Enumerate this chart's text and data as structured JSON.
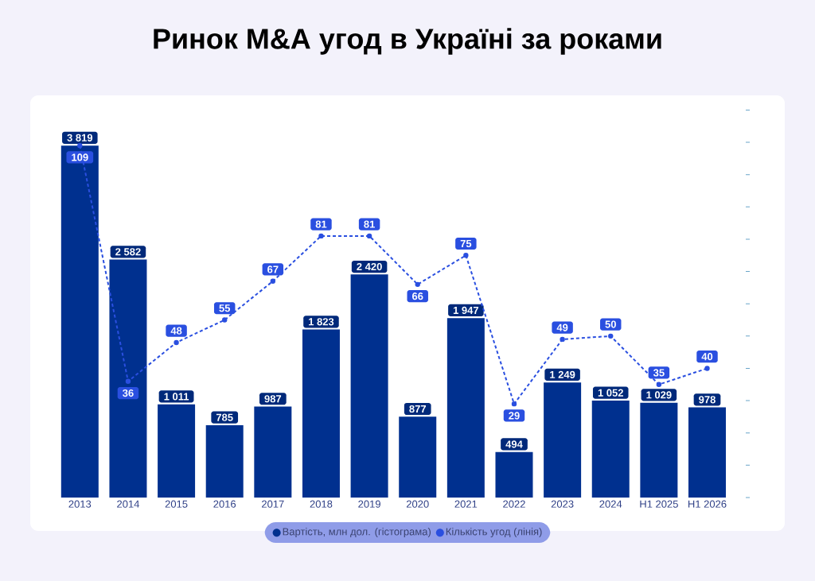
{
  "chart_data": {
    "type": "bar",
    "title": "Ринок M&A угод в Україні за роками",
    "categories": [
      "2013",
      "2014",
      "2015",
      "2016",
      "2017",
      "2018",
      "2019",
      "2020",
      "2021",
      "2022",
      "2023",
      "2024",
      "H1 2025",
      "H1 2026"
    ],
    "series": [
      {
        "name": "Вартість, млн дол. (гістограма)",
        "color": "#00308f",
        "values": [
          3819,
          2582,
          1011,
          785,
          987,
          1823,
          2420,
          877,
          1947,
          494,
          1249,
          1052,
          1029,
          978
        ],
        "value_labels": [
          "3 819",
          "2 582",
          "1 011",
          "785",
          "987",
          "1 823",
          "2 420",
          "877",
          "1 947",
          "494",
          "1 249",
          "1 052",
          "1 029",
          "978"
        ]
      },
      {
        "name": "Кількість угод (лінія)",
        "type": "line",
        "axis": "y2",
        "color": "#2a4fe0",
        "values": [
          109,
          36,
          48,
          55,
          67,
          81,
          81,
          66,
          75,
          29,
          49,
          50,
          35,
          40
        ],
        "value_labels": [
          "109",
          "36",
          "48",
          "55",
          "67",
          "81",
          "81",
          "66",
          "75",
          "29",
          "49",
          "50",
          "35",
          "40"
        ]
      }
    ],
    "tick_labels": "x",
    "legend": "bottom",
    "marker": "circle",
    "line_style": "dashed"
  }
}
